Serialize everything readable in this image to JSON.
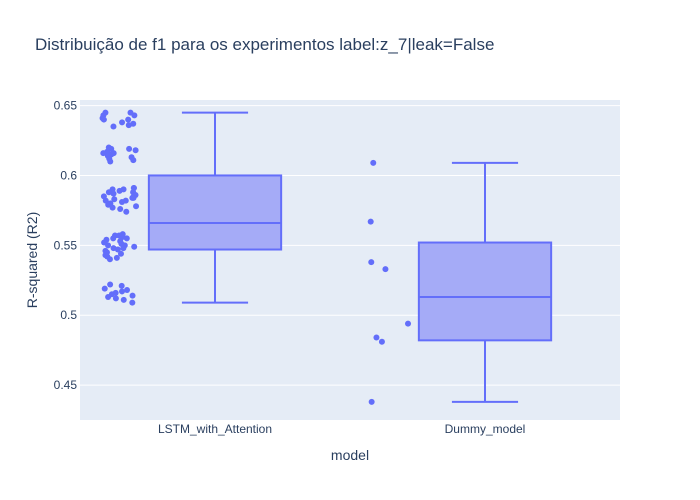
{
  "chart_data": {
    "type": "box",
    "title": "Distribuição de f1 para os experimentos   label:z_7|leak=False",
    "xlabel": "model",
    "ylabel": "R-squared (R2)",
    "ylim": [
      0.425,
      0.654
    ],
    "yticks": [
      0.45,
      0.5,
      0.55,
      0.6,
      0.65
    ],
    "ytick_labels": [
      "0.45",
      "0.5",
      "0.55",
      "0.6",
      "0.65"
    ],
    "grid": true,
    "colors": {
      "box_line": "#636efa",
      "box_fill": "#a5abf7",
      "points": "#636efa",
      "plot_bg": "#e5ecf6",
      "grid": "#ffffff",
      "text": "#2a3f5f"
    },
    "categories": [
      "LSTM_with_Attention",
      "Dummy_model"
    ],
    "boxes": [
      {
        "category": "LSTM_with_Attention",
        "min": 0.509,
        "q1": 0.547,
        "median": 0.566,
        "q3": 0.6,
        "max": 0.645,
        "points": [
          0.645,
          0.645,
          0.643,
          0.643,
          0.641,
          0.64,
          0.64,
          0.638,
          0.637,
          0.636,
          0.635,
          0.62,
          0.619,
          0.619,
          0.618,
          0.617,
          0.616,
          0.616,
          0.615,
          0.614,
          0.613,
          0.612,
          0.611,
          0.61,
          0.591,
          0.591,
          0.59,
          0.59,
          0.589,
          0.588,
          0.588,
          0.587,
          0.586,
          0.586,
          0.585,
          0.585,
          0.584,
          0.584,
          0.583,
          0.582,
          0.582,
          0.581,
          0.58,
          0.579,
          0.578,
          0.577,
          0.576,
          0.574,
          0.558,
          0.557,
          0.557,
          0.556,
          0.555,
          0.555,
          0.554,
          0.553,
          0.552,
          0.551,
          0.55,
          0.55,
          0.549,
          0.548,
          0.548,
          0.547,
          0.546,
          0.545,
          0.544,
          0.543,
          0.542,
          0.541,
          0.54,
          0.522,
          0.521,
          0.519,
          0.518,
          0.517,
          0.516,
          0.515,
          0.514,
          0.513,
          0.512,
          0.511,
          0.509
        ]
      },
      {
        "category": "Dummy_model",
        "min": 0.438,
        "q1": 0.482,
        "median": 0.513,
        "q3": 0.552,
        "max": 0.609,
        "points": [
          0.609,
          0.567,
          0.538,
          0.533,
          0.494,
          0.484,
          0.481,
          0.438
        ]
      }
    ]
  }
}
